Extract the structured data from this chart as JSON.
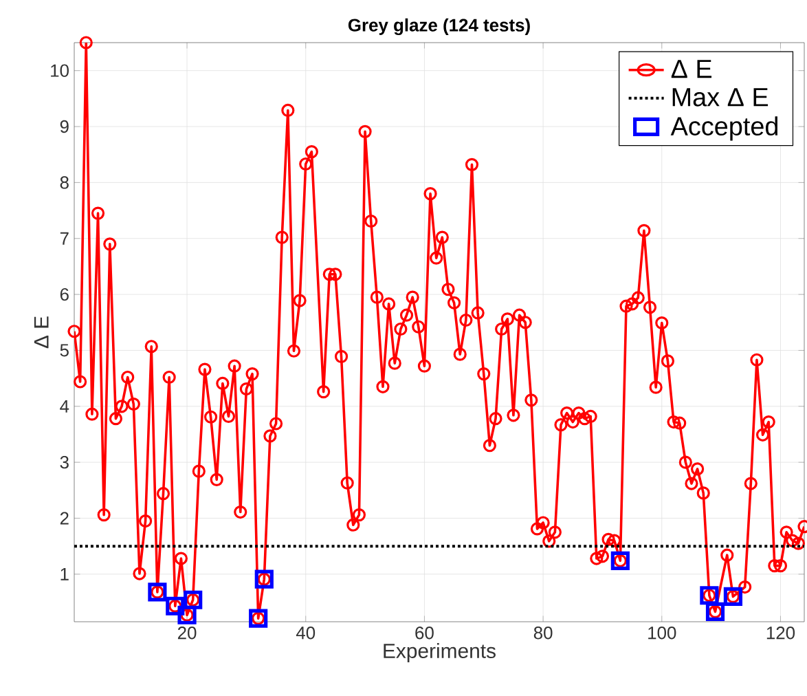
{
  "chart_data": {
    "type": "line",
    "title": "Grey glaze (124 tests)",
    "xlabel": "Experiments",
    "ylabel": "Δ E",
    "xlim": [
      1,
      124
    ],
    "ylim": [
      0.15,
      10.5
    ],
    "xticks": [
      20,
      40,
      60,
      80,
      100,
      120
    ],
    "yticks": [
      1,
      2,
      3,
      4,
      5,
      6,
      7,
      8,
      9,
      10
    ],
    "grid": true,
    "legend": "top right",
    "x": [
      1,
      2,
      3,
      4,
      5,
      6,
      7,
      8,
      9,
      10,
      11,
      12,
      13,
      14,
      15,
      16,
      17,
      18,
      19,
      20,
      21,
      22,
      23,
      24,
      25,
      26,
      27,
      28,
      29,
      30,
      31,
      32,
      33,
      34,
      35,
      36,
      37,
      38,
      39,
      40,
      41,
      43,
      44,
      45,
      46,
      47,
      48,
      49,
      50,
      51,
      52,
      53,
      54,
      55,
      56,
      57,
      58,
      59,
      60,
      61,
      62,
      63,
      64,
      65,
      66,
      67,
      68,
      69,
      70,
      71,
      72,
      73,
      74,
      75,
      76,
      77,
      78,
      79,
      80,
      81,
      82,
      83,
      84,
      85,
      86,
      87,
      88,
      89,
      90,
      91,
      92,
      93,
      94,
      95,
      96,
      97,
      98,
      99,
      100,
      101,
      102,
      103,
      104,
      105,
      106,
      107,
      108,
      109,
      111,
      112,
      114,
      115,
      116,
      117,
      118,
      119,
      120,
      121,
      122,
      123,
      124
    ],
    "series": [
      {
        "name": "Δ E",
        "color": "#ff0000",
        "marker": "circle",
        "line_style": "solid",
        "values": [
          5.34,
          4.44,
          10.5,
          3.86,
          7.45,
          2.06,
          6.9,
          3.78,
          4.0,
          4.52,
          4.04,
          1.01,
          1.95,
          5.07,
          0.68,
          2.44,
          4.52,
          0.43,
          1.28,
          0.27,
          0.54,
          2.84,
          4.66,
          3.81,
          2.69,
          4.41,
          3.82,
          4.72,
          2.11,
          4.31,
          4.58,
          0.21,
          0.91,
          3.47,
          3.69,
          7.02,
          9.29,
          4.99,
          5.89,
          8.33,
          8.55,
          4.26,
          6.36,
          6.36,
          4.89,
          2.63,
          1.88,
          2.06,
          8.91,
          7.31,
          5.95,
          4.35,
          5.83,
          4.77,
          5.38,
          5.63,
          5.95,
          5.42,
          4.72,
          7.8,
          6.65,
          7.02,
          6.09,
          5.85,
          4.93,
          5.54,
          8.32,
          5.67,
          4.58,
          3.3,
          3.78,
          5.38,
          5.56,
          3.84,
          5.63,
          5.5,
          4.11,
          1.81,
          1.92,
          1.59,
          1.75,
          3.67,
          3.88,
          3.72,
          3.88,
          3.78,
          3.82,
          1.28,
          1.32,
          1.62,
          1.6,
          1.24,
          5.79,
          5.83,
          5.94,
          7.14,
          5.77,
          4.34,
          5.49,
          4.81,
          3.72,
          3.7,
          3.0,
          2.62,
          2.88,
          2.45,
          0.62,
          0.33,
          1.34,
          0.6,
          0.77,
          2.62,
          4.83,
          3.49,
          3.72,
          1.15,
          1.15,
          1.75,
          1.6,
          1.55,
          1.85
        ]
      },
      {
        "name": "Accepted",
        "type": "scatter",
        "color": "#0000ff",
        "marker": "square",
        "x": [
          15,
          18,
          20,
          21,
          32,
          33,
          93,
          108,
          109,
          112
        ],
        "values": [
          0.68,
          0.43,
          0.27,
          0.54,
          0.21,
          0.91,
          1.24,
          0.62,
          0.33,
          0.6
        ]
      }
    ],
    "ref_lines": [
      {
        "axis": "y",
        "value": 1.5,
        "label": "Max Δ E",
        "color": "#000000",
        "line_style": "dotted"
      }
    ]
  }
}
